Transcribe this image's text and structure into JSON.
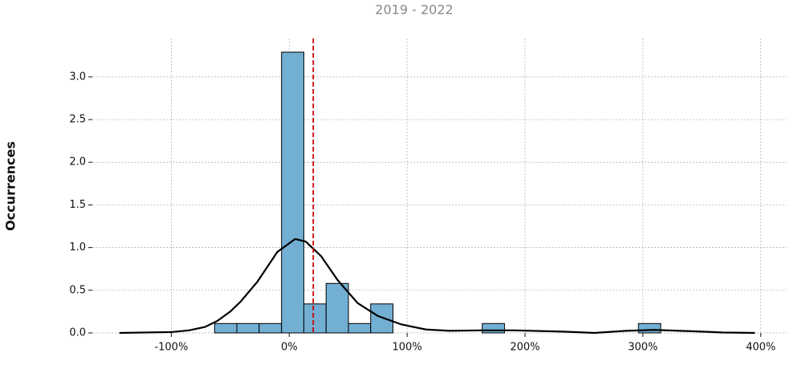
{
  "chart_data": {
    "type": "histogram",
    "subtitle": "2019 - 2022",
    "y_label": "Occurrences",
    "bins": [
      -63.3,
      -44.4,
      -25.5,
      -6.5,
      12.4,
      31.3,
      50.2,
      69.1,
      88.0,
      107.0,
      125.9,
      144.8,
      163.7,
      182.6,
      201.6,
      220.5,
      239.4,
      258.3,
      277.3,
      296.2,
      315.1
    ],
    "counts": [
      0.11,
      0.11,
      0.11,
      3.29,
      0.34,
      0.58,
      0.11,
      0.34,
      0,
      0,
      0,
      0,
      0.11,
      0,
      0,
      0,
      0,
      0,
      0,
      0.11
    ],
    "color": "#72afd3",
    "kde": {
      "color": "#000000",
      "x": [
        -144,
        -100,
        -85,
        -71.5,
        -61,
        -50,
        -41,
        -27,
        -10,
        5,
        14,
        27,
        41,
        58,
        75,
        95,
        116,
        136,
        163,
        191,
        232,
        259,
        286,
        310,
        341,
        368,
        395
      ],
      "values": [
        0,
        0.01,
        0.03,
        0.07,
        0.14,
        0.25,
        0.37,
        0.6,
        0.95,
        1.1,
        1.07,
        0.9,
        0.62,
        0.35,
        0.2,
        0.1,
        0.04,
        0.025,
        0.03,
        0.03,
        0.015,
        0,
        0.025,
        0.035,
        0.02,
        0.005,
        0
      ]
    },
    "mean_line": 20.4,
    "mean_color": "#cc0000",
    "xlim": [
      -167,
      422
    ],
    "ylim": [
      0,
      3.45
    ],
    "xticks": [
      {
        "value": -100,
        "label": "-100%"
      },
      {
        "value": 0,
        "label": "0%"
      },
      {
        "value": 100,
        "label": "100%"
      },
      {
        "value": 200,
        "label": "200%"
      },
      {
        "value": 300,
        "label": "300%"
      },
      {
        "value": 400,
        "label": "400%"
      }
    ],
    "yticks": [
      {
        "value": 0,
        "label": "0.0"
      },
      {
        "value": 0.5,
        "label": "0.5"
      },
      {
        "value": 1,
        "label": "1.0"
      },
      {
        "value": 1.5,
        "label": "1.5"
      },
      {
        "value": 2,
        "label": "2.0"
      },
      {
        "value": 2.5,
        "label": "2.5"
      },
      {
        "value": 3,
        "label": "3.0"
      }
    ],
    "grid": true
  }
}
